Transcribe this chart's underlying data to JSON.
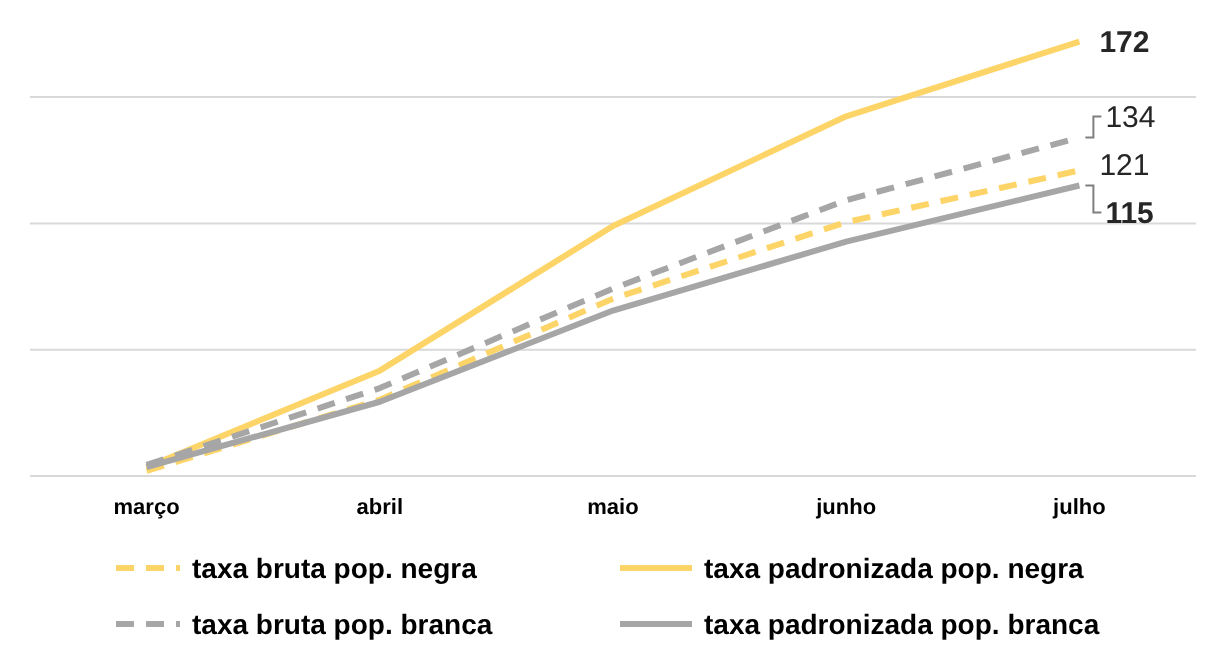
{
  "chart_data": {
    "type": "line",
    "categories": [
      "março",
      "abril",
      "maio",
      "junho",
      "julho"
    ],
    "yticks": [
      {
        "value": 0,
        "label": null
      },
      {
        "value": 50,
        "label": null
      },
      {
        "value": 100,
        "label": null
      },
      {
        "value": 150,
        "label": null
      }
    ],
    "grid": "y",
    "tick_labels": "x",
    "legend": "bottom",
    "marker": "none",
    "series": [
      {
        "name": "taxa bruta pop. negra",
        "color": "#fdd468",
        "line_style": "dashed",
        "values": [
          2,
          30.2,
          70.2,
          100.5,
          121
        ],
        "value_labels": [
          null,
          null,
          null,
          null,
          "121"
        ]
      },
      {
        "name": "taxa padronizada pop. negra",
        "color": "#fdd468",
        "line_style": "solid",
        "values": [
          3.5,
          41.7,
          99,
          142.4,
          172
        ],
        "value_labels": [
          null,
          null,
          null,
          null,
          "172"
        ]
      },
      {
        "name": "taxa bruta pop. branca",
        "color": "#a6a6a6",
        "line_style": "dashed",
        "values": [
          4.4,
          34.8,
          74.2,
          109.2,
          134
        ],
        "value_labels": [
          null,
          null,
          null,
          null,
          "134"
        ]
      },
      {
        "name": "taxa padronizada pop. branca",
        "color": "#a6a6a6",
        "line_style": "solid",
        "values": [
          3.5,
          29.4,
          65.5,
          92.8,
          115
        ],
        "value_labels": [
          null,
          null,
          null,
          null,
          "115"
        ]
      }
    ]
  }
}
